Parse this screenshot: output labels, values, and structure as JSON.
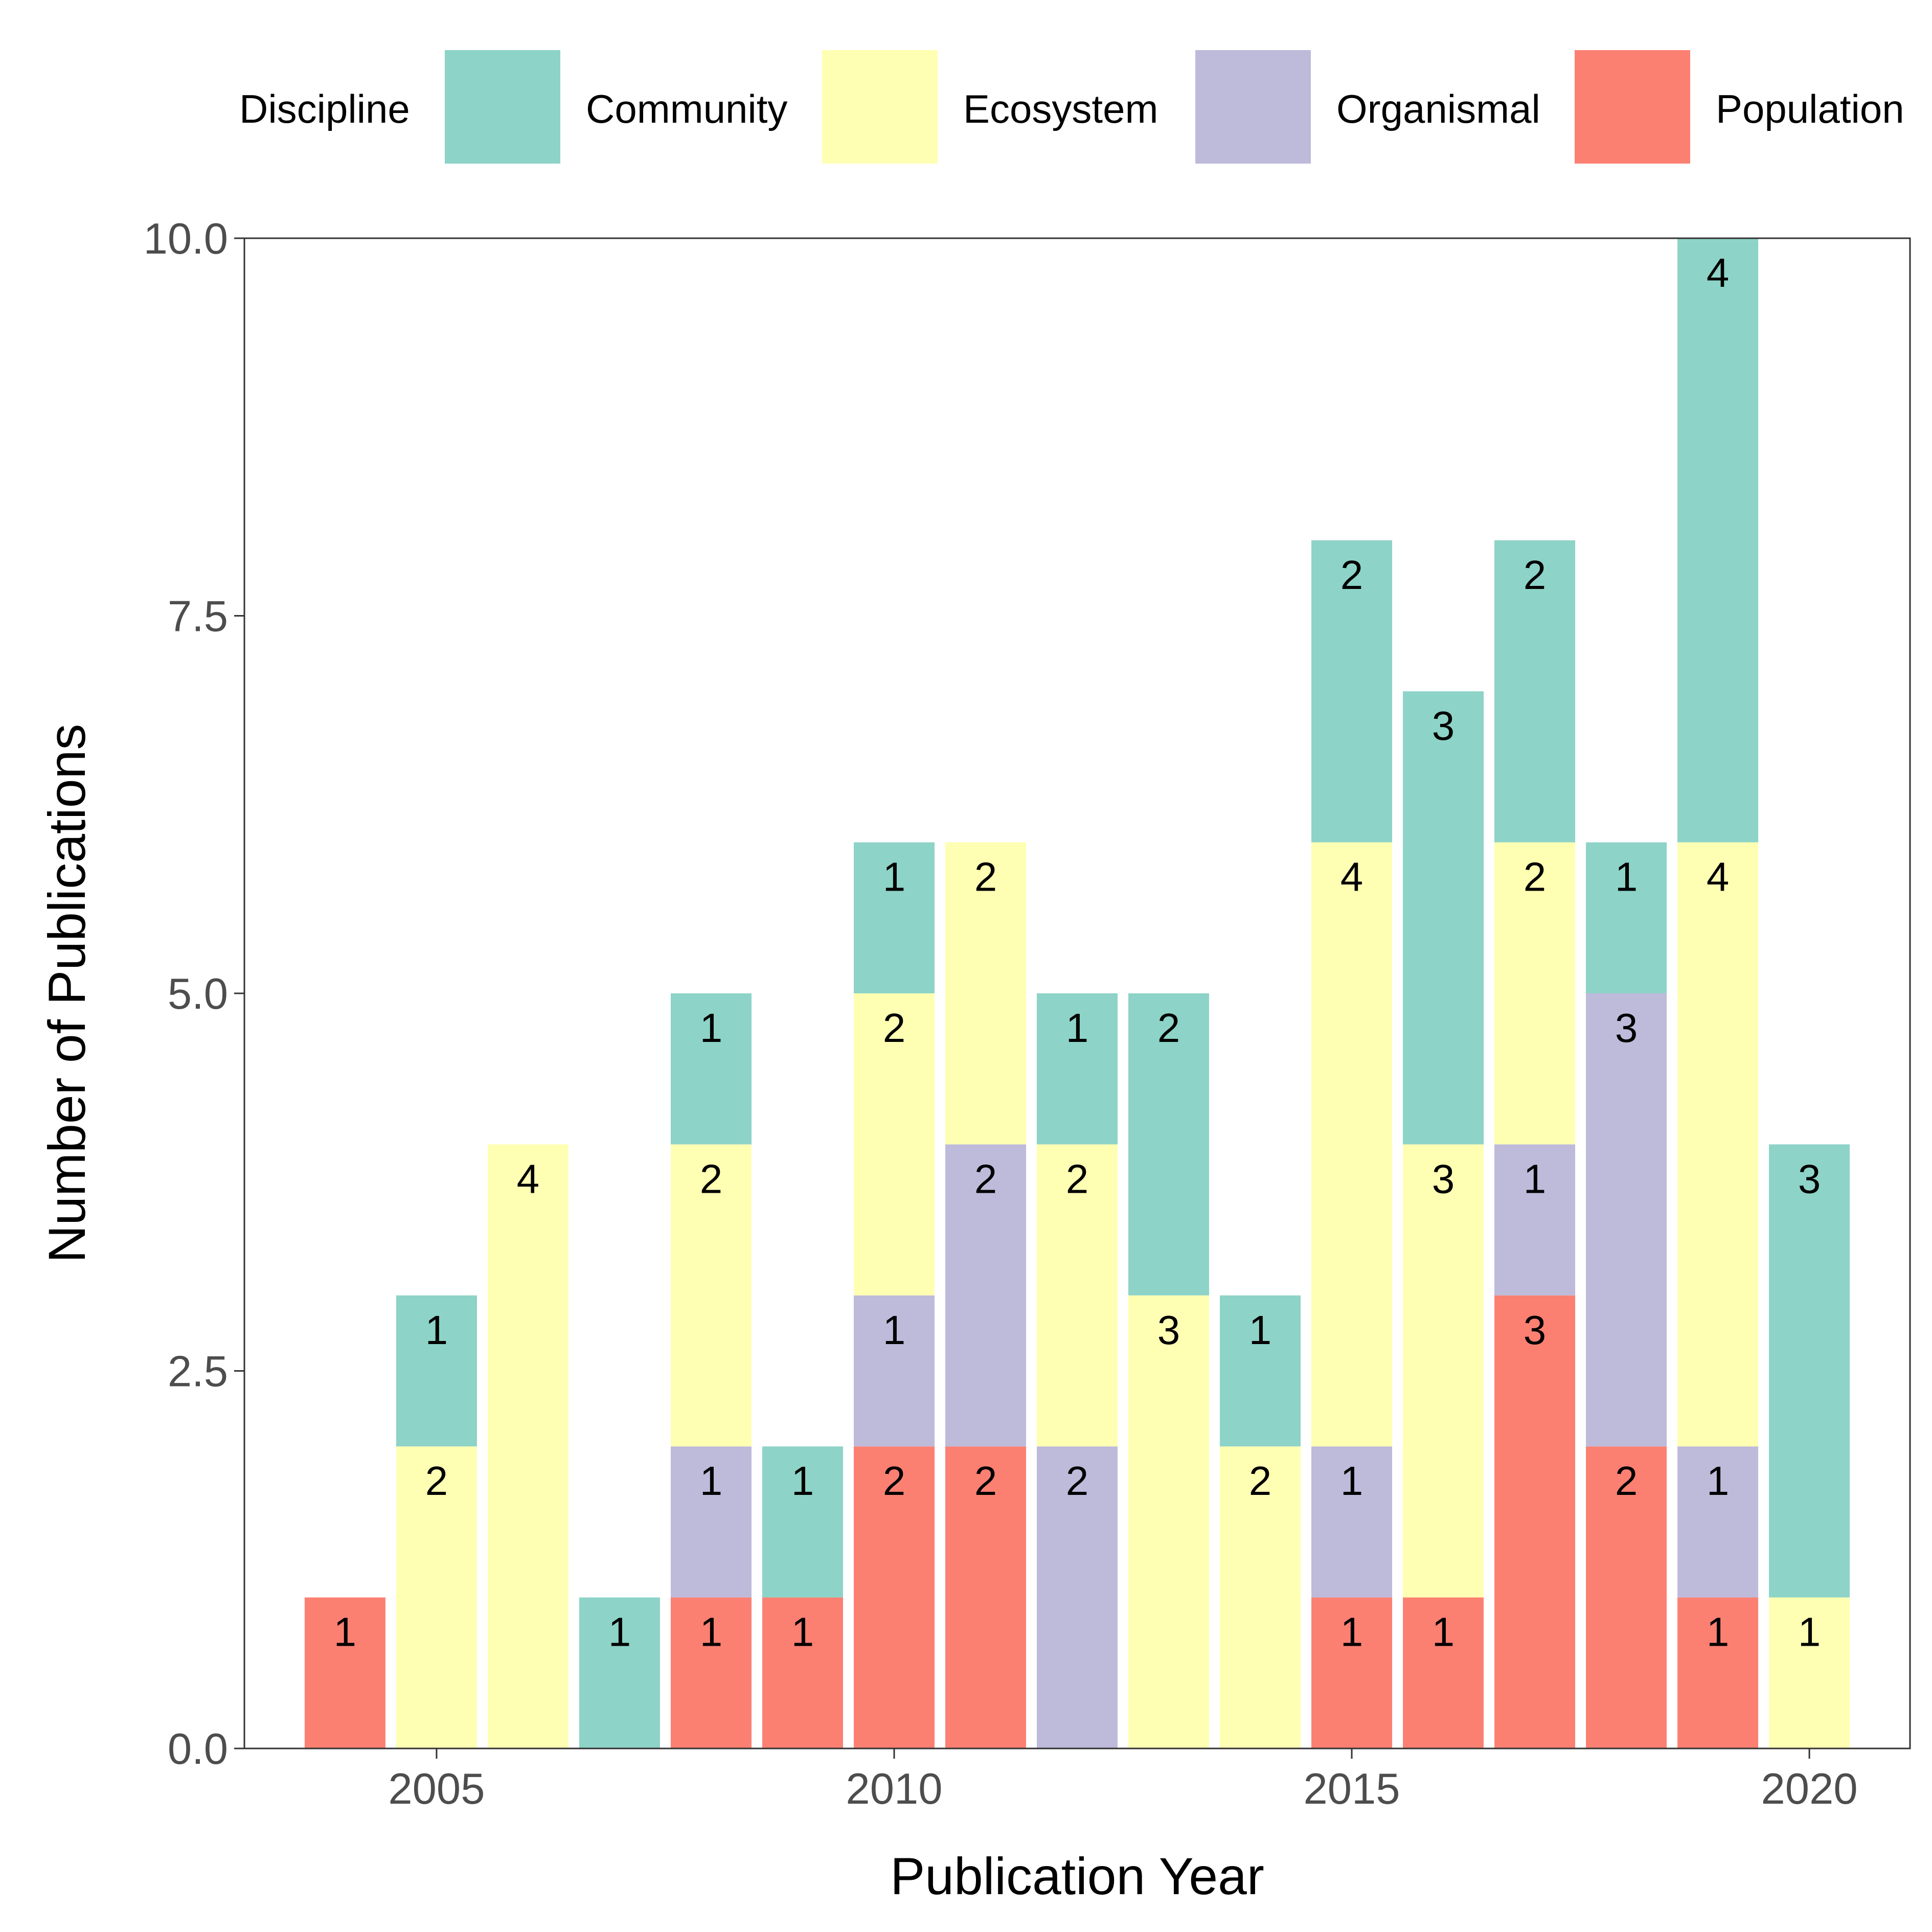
{
  "chart_data": {
    "type": "bar",
    "stacked": true,
    "xlabel": "Publication Year",
    "ylabel": "Number of Publications",
    "xlim": [
      2002.9,
      2021.1
    ],
    "ylim": [
      0,
      10
    ],
    "xticks": [
      2005,
      2010,
      2015,
      2020
    ],
    "yticks": [
      0,
      2.5,
      5,
      7.5,
      10
    ],
    "ytick_labels": [
      "0.0",
      "2.5",
      "5.0",
      "7.5",
      "10.0"
    ],
    "grid": false,
    "legend": {
      "title": "Discipline",
      "position": "top",
      "entries": [
        "Community",
        "Ecosystem",
        "Organismal",
        "Population"
      ]
    },
    "colors": {
      "Community": "#8dd3c7",
      "Ecosystem": "#ffffb3",
      "Organismal": "#bebada",
      "Population": "#fb8072"
    },
    "years": [
      2004,
      2005,
      2006,
      2007,
      2008,
      2009,
      2010,
      2011,
      2012,
      2013,
      2014,
      2015,
      2016,
      2017,
      2018,
      2019,
      2020
    ],
    "stack_order": [
      "Population",
      "Organismal",
      "Ecosystem",
      "Community"
    ],
    "series": [
      {
        "name": "Community",
        "values": [
          0,
          1,
          0,
          1,
          1,
          1,
          1,
          0,
          1,
          2,
          1,
          2,
          3,
          2,
          1,
          4,
          3
        ]
      },
      {
        "name": "Ecosystem",
        "values": [
          0,
          2,
          4,
          0,
          2,
          0,
          2,
          2,
          2,
          3,
          2,
          4,
          3,
          2,
          0,
          4,
          1
        ]
      },
      {
        "name": "Organismal",
        "values": [
          0,
          0,
          0,
          0,
          1,
          0,
          1,
          2,
          2,
          0,
          0,
          1,
          0,
          1,
          3,
          1,
          0
        ]
      },
      {
        "name": "Population",
        "values": [
          1,
          0,
          0,
          0,
          1,
          1,
          2,
          2,
          0,
          0,
          0,
          1,
          1,
          3,
          2,
          1,
          0
        ]
      }
    ]
  }
}
